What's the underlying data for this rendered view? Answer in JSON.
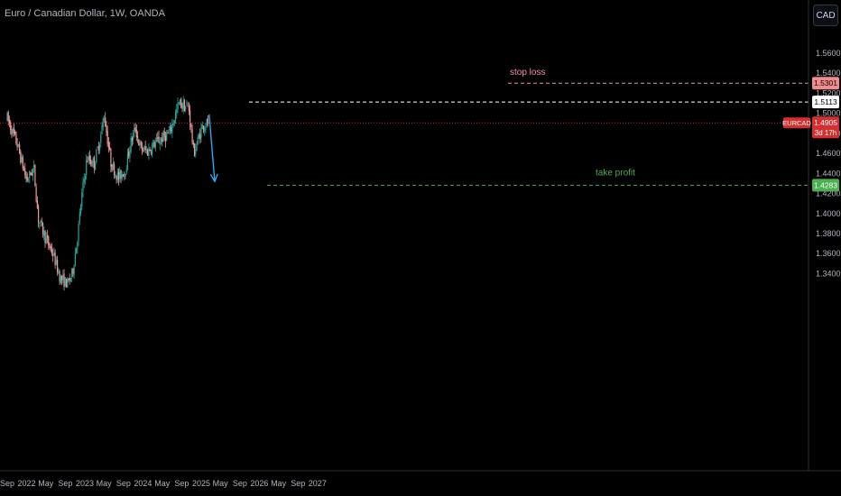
{
  "header": {
    "title": "Euro / Canadian Dollar, 1W, OANDA",
    "currency_button": "CAD"
  },
  "colors": {
    "up": "#26a69a",
    "down": "#ef9a9a",
    "stop": "#f48fb1",
    "profit": "#4caf50",
    "arrow": "#29b6f6",
    "resistance": "#ffffff",
    "current": "#d32f2f"
  },
  "annotations": {
    "stop_loss_label": "stop loss",
    "take_profit_label": "take profit",
    "arrow": {
      "from": [
        "2025-02-20",
        1.499
      ],
      "to": [
        "2025-03-27",
        1.432
      ]
    }
  },
  "price_tags": {
    "stop": "1.5301",
    "resistance": "1.5113",
    "symbol": "EURCAD",
    "current": "1.4905",
    "countdown": "3d 17h",
    "profit": "1.4283"
  },
  "chart_data": {
    "type": "candlestick",
    "timeframe": "1W",
    "ylim": [
      1.325,
      1.58
    ],
    "y_ticks": [
      "1.5600",
      "1.5400",
      "1.5200",
      "1.5000",
      "1.4800",
      "1.4600",
      "1.4400",
      "1.4200",
      "1.4000",
      "1.3800",
      "1.3600",
      "1.3400"
    ],
    "x_ticks": [
      "Sep",
      "2022",
      "May",
      "Sep",
      "2023",
      "May",
      "Sep",
      "2024",
      "May",
      "Sep",
      "2025",
      "May",
      "Sep",
      "2026",
      "May",
      "Sep",
      "2027"
    ],
    "levels": [
      {
        "name": "stop loss",
        "value": 1.5301
      },
      {
        "name": "resistance",
        "value": 1.5113
      },
      {
        "name": "current",
        "value": 1.4905
      },
      {
        "name": "take profit",
        "value": 1.4283
      }
    ],
    "close_path": [
      [
        "2021-09-01",
        1.495
      ],
      [
        "2021-11-01",
        1.47
      ],
      [
        "2022-01-01",
        1.433
      ],
      [
        "2022-02-15",
        1.445
      ],
      [
        "2022-03-15",
        1.395
      ],
      [
        "2022-05-01",
        1.375
      ],
      [
        "2022-06-15",
        1.36
      ],
      [
        "2022-08-01",
        1.335
      ],
      [
        "2022-09-15",
        1.33
      ],
      [
        "2022-10-15",
        1.34
      ],
      [
        "2022-11-15",
        1.375
      ],
      [
        "2022-12-15",
        1.42
      ],
      [
        "2023-01-15",
        1.455
      ],
      [
        "2023-03-01",
        1.45
      ],
      [
        "2023-04-15",
        1.48
      ],
      [
        "2023-05-01",
        1.5
      ],
      [
        "2023-06-15",
        1.45
      ],
      [
        "2023-08-01",
        1.435
      ],
      [
        "2023-09-15",
        1.445
      ],
      [
        "2023-10-15",
        1.47
      ],
      [
        "2023-11-15",
        1.485
      ],
      [
        "2023-12-15",
        1.465
      ],
      [
        "2024-02-01",
        1.462
      ],
      [
        "2024-03-15",
        1.47
      ],
      [
        "2024-05-01",
        1.475
      ],
      [
        "2024-06-15",
        1.48
      ],
      [
        "2024-08-15",
        1.51
      ],
      [
        "2024-10-15",
        1.505
      ],
      [
        "2024-11-15",
        1.46
      ],
      [
        "2025-01-10",
        1.488
      ],
      [
        "2025-02-15",
        1.4905
      ]
    ]
  }
}
